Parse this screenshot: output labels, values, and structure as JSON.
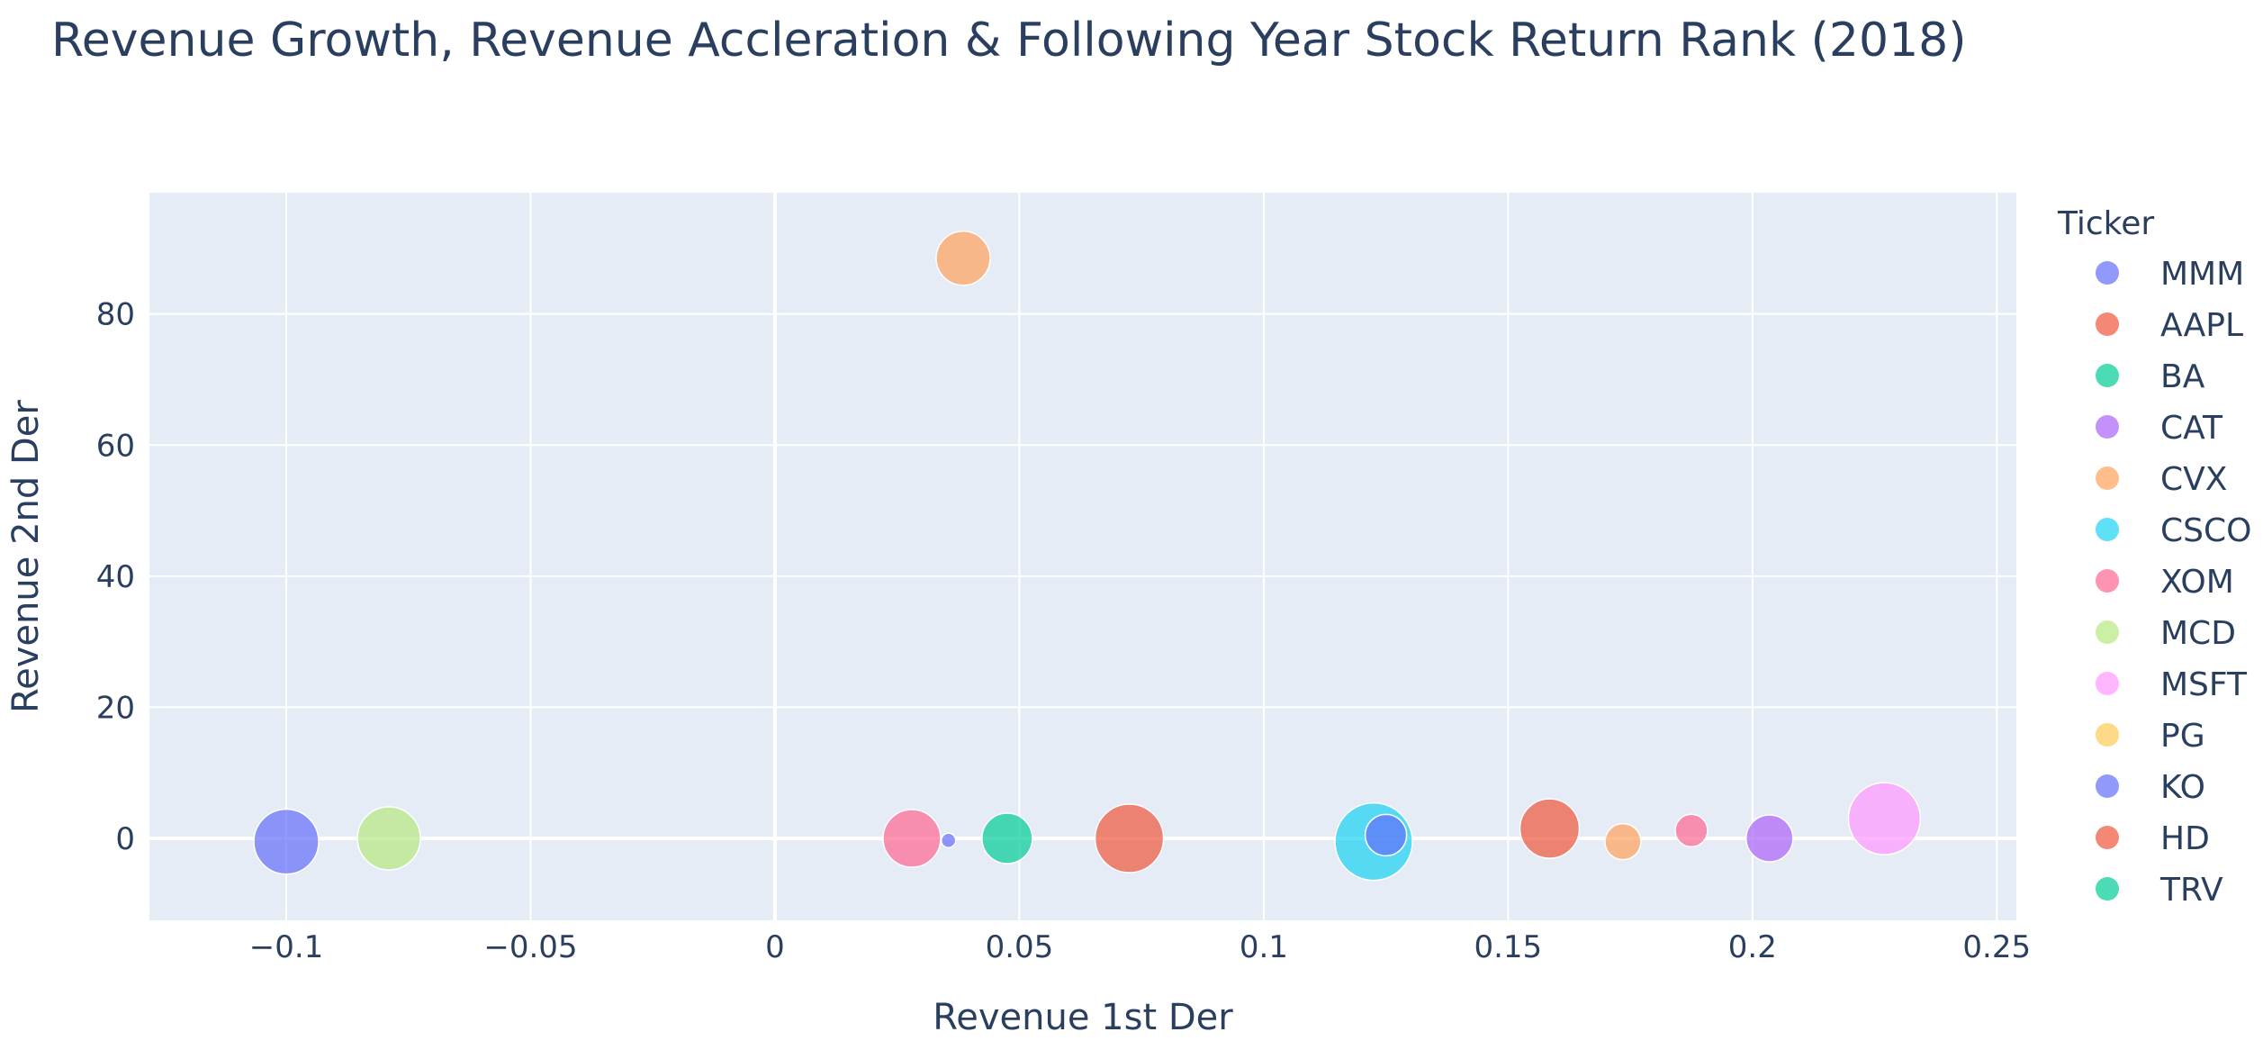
{
  "chart_data": {
    "type": "scatter",
    "title": "Revenue Growth, Revenue Accleration & Following Year Stock Return Rank (2018)",
    "xlabel": "Revenue 1st Der",
    "ylabel": "Revenue 2nd Der",
    "xlim": [
      -0.128,
      0.254
    ],
    "ylim": [
      -12.5,
      98.5
    ],
    "x_ticks": [
      -0.1,
      -0.05,
      0,
      0.05,
      0.1,
      0.15,
      0.2,
      0.25
    ],
    "x_tick_labels": [
      "−0.1",
      "−0.05",
      "0",
      "0.05",
      "0.1",
      "0.15",
      "0.2",
      "0.25"
    ],
    "y_ticks": [
      0,
      20,
      40,
      60,
      80
    ],
    "y_tick_labels": [
      "0",
      "20",
      "40",
      "60",
      "80"
    ],
    "grid": true,
    "legend_title": "Ticker",
    "legend_position": "right",
    "marker_opacity": 0.7,
    "series": [
      {
        "name": "MMM",
        "color": "#636efa",
        "x": -0.1,
        "y": -0.5,
        "size": 36
      },
      {
        "name": "AAPL",
        "color": "#EF553B",
        "x": 0.0725,
        "y": 0.0,
        "size": 38
      },
      {
        "name": "BA",
        "color": "#00cc96",
        "x": 0.0475,
        "y": 0.0,
        "size": 28
      },
      {
        "name": "CAT",
        "color": "#ab63fa",
        "x": 0.2035,
        "y": 0.0,
        "size": 26
      },
      {
        "name": "CVX",
        "color": "#FFA15A",
        "x": 0.0385,
        "y": 88.5,
        "size": 30
      },
      {
        "name": "CSCO",
        "color": "#19d3f3",
        "x": 0.1225,
        "y": -0.5,
        "size": 43
      },
      {
        "name": "XOM",
        "color": "#FF6692",
        "x": 0.028,
        "y": 0.0,
        "size": 32
      },
      {
        "name": "MCD",
        "color": "#B6E880",
        "x": -0.079,
        "y": 0.0,
        "size": 35
      },
      {
        "name": "MSFT",
        "color": "#FF97FF",
        "x": 0.227,
        "y": 3.0,
        "size": 40
      },
      {
        "name": "PG",
        "color": "#FECB52",
        "x": 0.0,
        "y": 0.0,
        "size": 0
      },
      {
        "name": "KO",
        "color": "#636efa",
        "x": 0.125,
        "y": 0.5,
        "size": 23
      },
      {
        "name": "HD",
        "color": "#EF553B",
        "x": 0.1585,
        "y": 1.5,
        "size": 33
      },
      {
        "name": "TRV",
        "color": "#00cc96",
        "x": 0.0,
        "y": 0.0,
        "size": 0
      }
    ],
    "unlabeled_points": [
      {
        "color": "#FFA15A",
        "x": 0.1735,
        "y": -0.5,
        "size": 20
      },
      {
        "color": "#FF6692",
        "x": 0.1875,
        "y": 1.2,
        "size": 18
      },
      {
        "color": "#636efa",
        "x": 0.0355,
        "y": -0.3,
        "size": 8
      }
    ]
  }
}
